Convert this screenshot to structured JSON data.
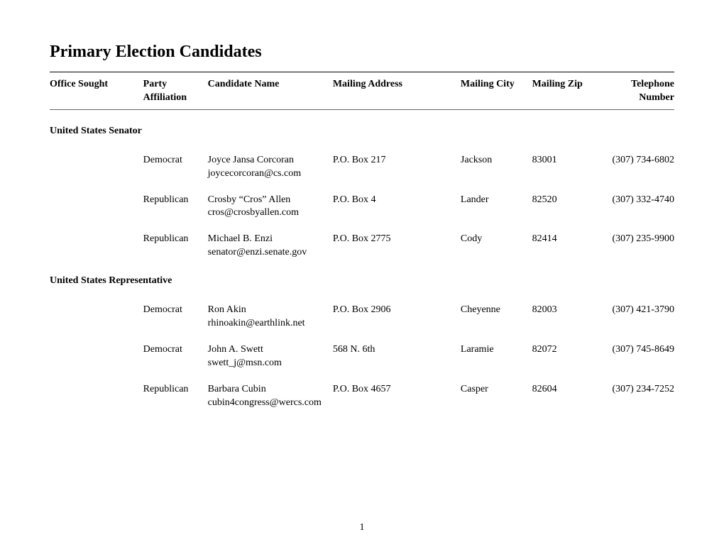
{
  "title": "Primary Election Candidates",
  "columns": {
    "office": "Office Sought",
    "party": "Party Affiliation",
    "name": "Candidate Name",
    "address": "Mailing Address",
    "city": "Mailing City",
    "zip": "Mailing Zip",
    "phone": "Telephone Number"
  },
  "sections": [
    {
      "office": "United States Senator",
      "candidates": [
        {
          "party": "Democrat",
          "name": "Joyce Jansa Corcoran",
          "email": "joycecorcoran@cs.com",
          "address": "P.O. Box 217",
          "city": "Jackson",
          "zip": "83001",
          "phone": "(307) 734-6802"
        },
        {
          "party": "Republican",
          "name": "Crosby “Cros” Allen",
          "email": "cros@crosbyallen.com",
          "address": "P.O. Box 4",
          "city": "Lander",
          "zip": "82520",
          "phone": "(307) 332-4740"
        },
        {
          "party": "Republican",
          "name": "Michael B. Enzi",
          "email": "senator@enzi.senate.gov",
          "address": "P.O. Box 2775",
          "city": "Cody",
          "zip": "82414",
          "phone": "(307) 235-9900"
        }
      ]
    },
    {
      "office": "United States Representative",
      "candidates": [
        {
          "party": "Democrat",
          "name": "Ron Akin",
          "email": "rhinoakin@earthlink.net",
          "address": "P.O. Box 2906",
          "city": "Cheyenne",
          "zip": "82003",
          "phone": "(307) 421-3790"
        },
        {
          "party": "Democrat",
          "name": "John A. Swett",
          "email": "swett_j@msn.com",
          "address": "568 N. 6th",
          "city": "Laramie",
          "zip": "82072",
          "phone": "(307) 745-8649"
        },
        {
          "party": "Republican",
          "name": "Barbara Cubin",
          "email": "cubin4congress@wercs.com",
          "address": "P.O. Box 4657",
          "city": "Casper",
          "zip": "82604",
          "phone": "(307) 234-7252"
        }
      ]
    }
  ],
  "page_number": "1"
}
